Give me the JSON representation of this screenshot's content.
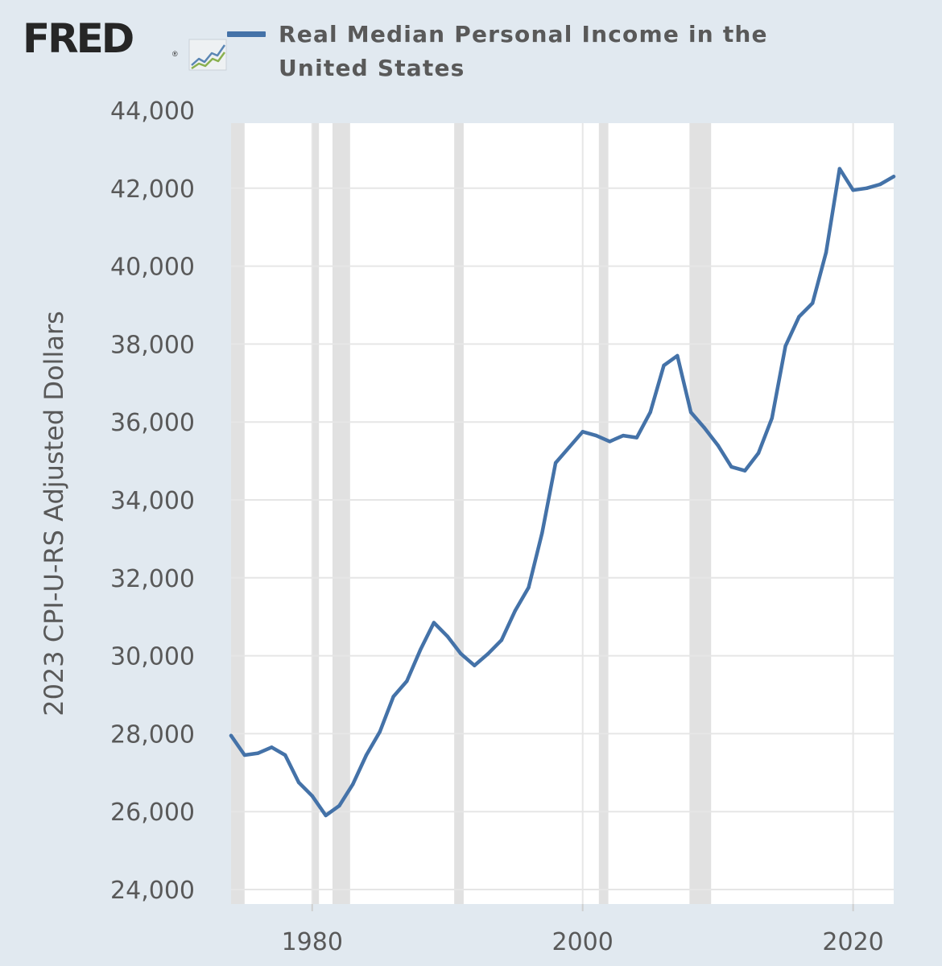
{
  "header": {
    "logo_text": "FRED",
    "logo_reg": "®",
    "logo_icon": "line-graph-icon"
  },
  "colors": {
    "background": "#e1e9f0",
    "plot_area": "#ffffff",
    "series_line": "#4472a8",
    "recession_band": "#e1e1e1",
    "gridline": "#e6e6e6",
    "text": "#595959"
  },
  "chart_data": {
    "type": "line",
    "title": "",
    "ylabel": "2023 CPI-U-RS Adjusted Dollars",
    "xlabel": "",
    "ylim": [
      24000,
      44000
    ],
    "xlim": [
      1974,
      2023
    ],
    "y_ticks": [
      24000,
      26000,
      28000,
      30000,
      32000,
      34000,
      36000,
      38000,
      40000,
      42000,
      44000
    ],
    "y_tick_labels": [
      "24,000",
      "26,000",
      "28,000",
      "30,000",
      "32,000",
      "34,000",
      "36,000",
      "38,000",
      "40,000",
      "42,000",
      "44,000"
    ],
    "x_ticks": [
      1980,
      2000,
      2020
    ],
    "x_tick_labels": [
      "1980",
      "2000",
      "2020"
    ],
    "grid": "horizontal",
    "legend_position": "top",
    "recessions": [
      [
        1974.0,
        1975.0
      ],
      [
        1980.0,
        1980.5
      ],
      [
        1981.5,
        1982.8
      ],
      [
        1990.5,
        1991.2
      ],
      [
        2001.2,
        2001.9
      ],
      [
        2007.9,
        2009.5
      ]
    ],
    "series": [
      {
        "name": "Real Median Personal Income in the United States",
        "x": [
          1974,
          1975,
          1976,
          1977,
          1978,
          1979,
          1980,
          1981,
          1982,
          1983,
          1984,
          1985,
          1986,
          1987,
          1988,
          1989,
          1990,
          1991,
          1992,
          1993,
          1994,
          1995,
          1996,
          1997,
          1998,
          1999,
          2000,
          2001,
          2002,
          2003,
          2004,
          2005,
          2006,
          2007,
          2008,
          2009,
          2010,
          2011,
          2012,
          2013,
          2014,
          2015,
          2016,
          2017,
          2018,
          2019,
          2020,
          2021,
          2022,
          2023
        ],
        "values": [
          27950,
          27450,
          27500,
          27650,
          27450,
          26750,
          26400,
          25900,
          26150,
          26700,
          27450,
          28050,
          28950,
          29350,
          30150,
          30850,
          30500,
          30050,
          29750,
          30050,
          30400,
          31150,
          31750,
          33150,
          34950,
          35350,
          35750,
          35650,
          35500,
          35650,
          35600,
          36250,
          37450,
          37700,
          36250,
          35850,
          35400,
          34850,
          34750,
          35200,
          36100,
          37950,
          38700,
          39050,
          40350,
          42500,
          41950,
          42000,
          42100,
          42300
        ]
      }
    ]
  }
}
